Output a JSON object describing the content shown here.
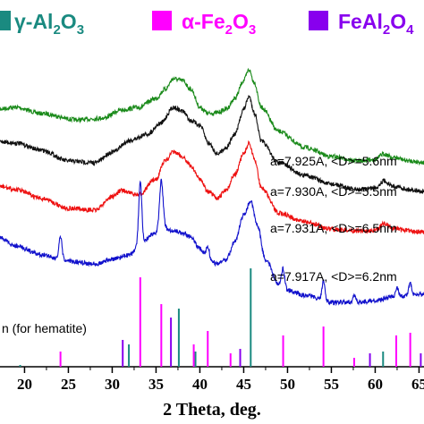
{
  "chart_data": {
    "type": "line",
    "xlabel": "2 Theta, deg.",
    "xlim": [
      17,
      66
    ],
    "x_ticks": [
      20,
      25,
      30,
      35,
      40,
      45,
      50,
      55,
      60,
      65
    ],
    "x_tick_labels": [
      "20",
      "25",
      "30",
      "35",
      "40",
      "45",
      "50",
      "55",
      "60",
      "65"
    ],
    "legend": [
      {
        "label": "γ-Al",
        "sub1": "2",
        "label_mid": "O",
        "sub2": "3",
        "color": "#1a8a80"
      },
      {
        "label": "α-Fe",
        "sub1": "2",
        "label_mid": "O",
        "sub2": "3",
        "color": "#ff00ff"
      },
      {
        "label": "FeAl",
        "sub1": "2",
        "label_mid": "O",
        "sub2": "4",
        "color": "#8800ee"
      }
    ],
    "reference_note": "n (for hematite)",
    "series": [
      {
        "color": "#1a8a1a",
        "annotation": "a=7.925A, <D>=5.6nm",
        "anchors": [
          [
            17,
            122
          ],
          [
            19,
            120
          ],
          [
            22,
            127
          ],
          [
            26,
            134
          ],
          [
            29,
            132
          ],
          [
            31,
            123
          ],
          [
            33,
            120
          ],
          [
            35,
            110
          ],
          [
            36,
            100
          ],
          [
            37,
            88
          ],
          [
            38,
            90
          ],
          [
            39,
            100
          ],
          [
            40,
            120
          ],
          [
            41,
            127
          ],
          [
            42,
            126
          ],
          [
            43,
            122
          ],
          [
            44,
            110
          ],
          [
            45,
            90
          ],
          [
            45.6,
            78
          ],
          [
            46.2,
            92
          ],
          [
            47,
            120
          ],
          [
            49,
            147
          ],
          [
            52,
            165
          ],
          [
            55,
            175
          ],
          [
            58,
            180
          ],
          [
            60,
            178
          ],
          [
            61,
            172
          ],
          [
            62,
            176
          ],
          [
            64,
            180
          ],
          [
            66,
            182
          ]
        ],
        "spikes": []
      },
      {
        "color": "#111111",
        "annotation": "a=7.930A, <D>=5.5nm",
        "anchors": [
          [
            17,
            158
          ],
          [
            19,
            160
          ],
          [
            22,
            168
          ],
          [
            25,
            180
          ],
          [
            28,
            182
          ],
          [
            30,
            170
          ],
          [
            32,
            157
          ],
          [
            34,
            150
          ],
          [
            35.5,
            138
          ],
          [
            37,
            120
          ],
          [
            38,
            124
          ],
          [
            39,
            135
          ],
          [
            40,
            140
          ],
          [
            41,
            160
          ],
          [
            42,
            172
          ],
          [
            43,
            165
          ],
          [
            44,
            150
          ],
          [
            45,
            122
          ],
          [
            45.6,
            108
          ],
          [
            46.3,
            128
          ],
          [
            47,
            158
          ],
          [
            49,
            182
          ],
          [
            52,
            196
          ],
          [
            55,
            206
          ],
          [
            58,
            212
          ],
          [
            60,
            210
          ],
          [
            61,
            202
          ],
          [
            62,
            208
          ],
          [
            64,
            212
          ],
          [
            66,
            215
          ]
        ],
        "spikes": []
      },
      {
        "color": "#ee1111",
        "annotation": "a=7.931A, <D>=6.5nm",
        "anchors": [
          [
            17,
            208
          ],
          [
            19,
            212
          ],
          [
            22,
            222
          ],
          [
            25,
            233
          ],
          [
            28,
            235
          ],
          [
            30,
            220
          ],
          [
            31,
            213
          ],
          [
            33,
            218
          ],
          [
            35,
            200
          ],
          [
            36,
            180
          ],
          [
            37,
            170
          ],
          [
            38,
            175
          ],
          [
            39,
            186
          ],
          [
            40,
            200
          ],
          [
            41,
            215
          ],
          [
            42,
            222
          ],
          [
            43,
            212
          ],
          [
            44,
            195
          ],
          [
            45,
            172
          ],
          [
            45.6,
            160
          ],
          [
            46.3,
            180
          ],
          [
            47,
            210
          ],
          [
            49,
            238
          ],
          [
            52,
            248
          ],
          [
            55,
            256
          ],
          [
            58,
            258
          ],
          [
            60,
            258
          ],
          [
            61,
            250
          ],
          [
            62,
            255
          ],
          [
            64,
            258
          ],
          [
            66,
            260
          ]
        ],
        "spikes": []
      },
      {
        "color": "#1111cc",
        "annotation": "a=7.917A, <D>=6.2nm",
        "anchors": [
          [
            17,
            265
          ],
          [
            19,
            275
          ],
          [
            22,
            285
          ],
          [
            25,
            292
          ],
          [
            28,
            295
          ],
          [
            30,
            290
          ],
          [
            32,
            285
          ],
          [
            33,
            275
          ],
          [
            35,
            260
          ],
          [
            36,
            255
          ],
          [
            37,
            258
          ],
          [
            38,
            260
          ],
          [
            39,
            265
          ],
          [
            40,
            278
          ],
          [
            41,
            290
          ],
          [
            42,
            295
          ],
          [
            43,
            290
          ],
          [
            44,
            270
          ],
          [
            45,
            240
          ],
          [
            45.8,
            225
          ],
          [
            46.5,
            250
          ],
          [
            47.5,
            290
          ],
          [
            49,
            318
          ],
          [
            50,
            325
          ],
          [
            52,
            330
          ],
          [
            55,
            338
          ],
          [
            58,
            338
          ],
          [
            60,
            336
          ],
          [
            62,
            332
          ],
          [
            64,
            330
          ],
          [
            66,
            328
          ]
        ],
        "spikes": [
          [
            24.1,
            25,
            0.35
          ],
          [
            33.2,
            70,
            0.35
          ],
          [
            35.6,
            55,
            0.4
          ],
          [
            40.9,
            14,
            0.35
          ],
          [
            49.5,
            22,
            0.35
          ],
          [
            54.1,
            22,
            0.35
          ],
          [
            57.6,
            8,
            0.3
          ],
          [
            62.5,
            10,
            0.3
          ],
          [
            64,
            14,
            0.3
          ]
        ]
      }
    ],
    "reference_lines": [
      {
        "color": "#1a8a80",
        "peaks": [
          [
            19.5,
            408
          ],
          [
            31.9,
            385
          ],
          [
            37.6,
            345
          ],
          [
            39.5,
            393
          ],
          [
            45.8,
            300
          ],
          [
            60.9,
            393
          ],
          [
            66,
            363
          ]
        ]
      },
      {
        "color": "#ff00ff",
        "peaks": [
          [
            24.1,
            393
          ],
          [
            33.2,
            310
          ],
          [
            35.6,
            340
          ],
          [
            39.3,
            385
          ],
          [
            40.9,
            370
          ],
          [
            43.5,
            395
          ],
          [
            49.5,
            375
          ],
          [
            54.1,
            365
          ],
          [
            57.6,
            400
          ],
          [
            62.4,
            375
          ],
          [
            64,
            372
          ]
        ]
      },
      {
        "color": "#8800ee",
        "peaks": [
          [
            18.3,
            410
          ],
          [
            31.2,
            380
          ],
          [
            36.7,
            355
          ],
          [
            44.6,
            390
          ],
          [
            55.7,
            410
          ],
          [
            59.4,
            395
          ],
          [
            65.2,
            395
          ]
        ]
      }
    ]
  }
}
